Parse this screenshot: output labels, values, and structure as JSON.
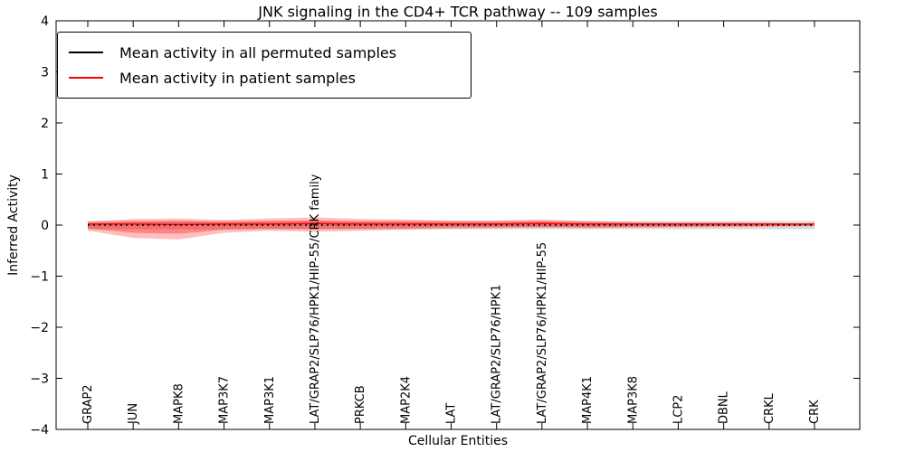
{
  "chart_data": {
    "type": "line",
    "title": "JNK signaling in the CD4+ TCR pathway -- 109 samples",
    "xlabel": "Cellular Entities",
    "ylabel": "Inferred Activity",
    "ylim": [
      -4,
      4
    ],
    "grid": false,
    "legend_position": "upper left",
    "yticks": [
      {
        "v": 4,
        "label": "4"
      },
      {
        "v": 3,
        "label": "3"
      },
      {
        "v": 2,
        "label": "2"
      },
      {
        "v": 1,
        "label": "1"
      },
      {
        "v": 0,
        "label": "0"
      },
      {
        "v": -1,
        "label": "−1"
      },
      {
        "v": -2,
        "label": "−2"
      },
      {
        "v": -3,
        "label": "−3"
      },
      {
        "v": -4,
        "label": "−4"
      }
    ],
    "categories": [
      "GRAP2",
      "JUN",
      "MAPK8",
      "MAP3K7",
      "MAP3K1",
      "LAT/GRAP2/SLP76/HPK1/HIP-55/CRK family",
      "PRKCB",
      "MAP2K4",
      "LAT",
      "LAT/GRAP2/SLP76/HPK1",
      "LAT/GRAP2/SLP76/HPK1/HIP-55",
      "MAP4K1",
      "MAP3K8",
      "LCP2",
      "DBNL",
      "CRKL",
      "CRK"
    ],
    "legend": [
      {
        "label": "Mean activity in all permuted samples",
        "color": "#000000"
      },
      {
        "label": "Mean activity in patient samples",
        "color": "#ff0000"
      }
    ],
    "bands": [
      {
        "name": "permuted-std-band",
        "color": "rgba(130,130,130,0.30)",
        "upper": [
          0.08,
          0.08,
          0.08,
          0.08,
          0.08,
          0.08,
          0.08,
          0.08,
          0.08,
          0.08,
          0.08,
          0.08,
          0.08,
          0.08,
          0.08,
          0.08,
          0.08
        ],
        "lower": [
          -0.08,
          -0.08,
          -0.08,
          -0.08,
          -0.08,
          -0.08,
          -0.08,
          -0.08,
          -0.08,
          -0.08,
          -0.08,
          -0.08,
          -0.08,
          -0.08,
          -0.08,
          -0.08,
          -0.08
        ]
      },
      {
        "name": "patient-std-outer-band",
        "color": "rgba(255,0,0,0.25)",
        "upper": [
          0.07,
          0.12,
          0.13,
          0.1,
          0.13,
          0.15,
          0.12,
          0.11,
          0.09,
          0.09,
          0.11,
          0.08,
          0.06,
          0.05,
          0.05,
          0.04,
          0.03
        ],
        "lower": [
          -0.11,
          -0.25,
          -0.28,
          -0.15,
          -0.11,
          -0.13,
          -0.11,
          -0.09,
          -0.07,
          -0.06,
          -0.05,
          -0.06,
          -0.05,
          -0.04,
          -0.04,
          -0.03,
          -0.02
        ]
      },
      {
        "name": "patient-std-inner-band",
        "color": "rgba(255,0,0,0.30)",
        "upper": [
          0.04,
          0.07,
          0.08,
          0.06,
          0.08,
          0.09,
          0.07,
          0.07,
          0.06,
          0.06,
          0.07,
          0.05,
          0.04,
          0.03,
          0.03,
          0.03,
          0.02
        ],
        "lower": [
          -0.07,
          -0.15,
          -0.17,
          -0.09,
          -0.07,
          -0.08,
          -0.07,
          -0.06,
          -0.04,
          -0.04,
          -0.03,
          -0.04,
          -0.03,
          -0.03,
          -0.02,
          -0.02,
          -0.01
        ]
      }
    ],
    "series": [
      {
        "name": "Mean activity in patient samples",
        "color": "#ff0000",
        "style": "solid",
        "values": [
          0.02,
          0.02,
          0.01,
          0.02,
          0.02,
          0.03,
          0.02,
          0.02,
          0.02,
          0.02,
          0.03,
          0.02,
          0.02,
          0.02,
          0.02,
          0.02,
          0.02
        ]
      },
      {
        "name": "Mean activity in all permuted samples",
        "color": "#000000",
        "style": "dashed",
        "values": [
          0.0,
          0.0,
          0.0,
          0.0,
          0.0,
          0.0,
          0.0,
          0.0,
          0.0,
          0.0,
          0.0,
          0.0,
          0.0,
          0.0,
          0.0,
          0.0,
          0.0
        ]
      }
    ]
  }
}
